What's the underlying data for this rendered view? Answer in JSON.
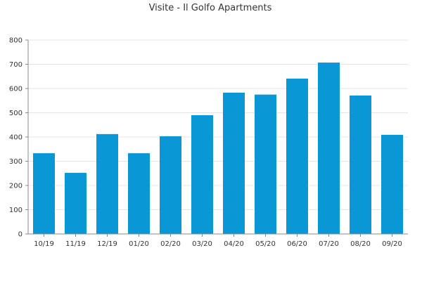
{
  "chart_data": {
    "type": "bar",
    "title": "Visite - Il Golfo Apartments",
    "xlabel": "",
    "ylabel": "",
    "categories": [
      "10/19",
      "11/19",
      "12/19",
      "01/20",
      "02/20",
      "03/20",
      "04/20",
      "05/20",
      "06/20",
      "07/20",
      "08/20",
      "09/20"
    ],
    "values": [
      333,
      252,
      412,
      333,
      403,
      490,
      583,
      575,
      641,
      707,
      571,
      409
    ],
    "ylim": [
      0,
      800
    ],
    "yticks": [
      0,
      100,
      200,
      300,
      400,
      500,
      600,
      700,
      800
    ],
    "grid": true,
    "legend": "none",
    "colors": {
      "bar": "#0A97D6",
      "grid": "#E4E4E4",
      "axis": "#888888",
      "text": "#333333"
    }
  }
}
